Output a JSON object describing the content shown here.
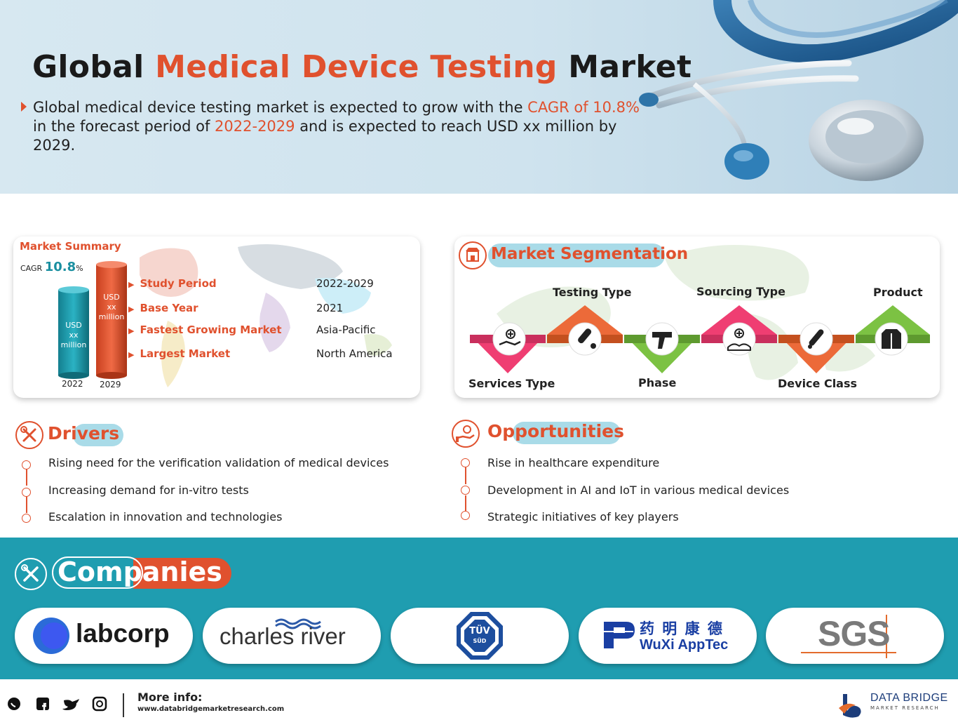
{
  "hero": {
    "title_part1": "Global ",
    "title_part2": "Medical Device Testing",
    "title_part3": " Market",
    "text_1": "Global medical device testing market is expected to grow with the ",
    "text_cagr": "CAGR of 10.8%",
    "text_2": " in the forecast period of ",
    "text_period": "2022-2029",
    "text_3": " and is expected to reach USD xx million by 2029."
  },
  "market_summary": {
    "title": "Market Summary",
    "cagr_prefix": "CAGR",
    "cagr_value": "10.8",
    "cagr_suffix": "%",
    "bar_2022_line1": "USD",
    "bar_2022_line2": "xx",
    "bar_2022_line3": "million",
    "bar_2029_line1": "USD",
    "bar_2029_line2": "xx",
    "bar_2029_line3": "million",
    "year_2022": "2022",
    "year_2029": "2029",
    "rows": [
      {
        "label": "Study Period",
        "value": "2022-2029"
      },
      {
        "label": "Base Year",
        "value": "2021"
      },
      {
        "label": "Fastest Growing Market",
        "value": "Asia-Pacific"
      },
      {
        "label": "Largest Market",
        "value": "North America"
      }
    ]
  },
  "segmentation": {
    "title": "Market Segmentation",
    "segments": [
      "Services Type",
      "Testing Type",
      "Phase",
      "Sourcing Type",
      "Device Class",
      "Product"
    ]
  },
  "drivers": {
    "title": "Drivers",
    "items": [
      "Rising need for the verification validation of medical devices",
      "Increasing demand for in-vitro tests",
      "Escalation in innovation and technologies"
    ]
  },
  "opportunities": {
    "title": "Opportunities",
    "items": [
      "Rise in healthcare expenditure",
      "Development in AI and IoT in various medical devices",
      "Strategic initiatives of key players"
    ]
  },
  "companies": {
    "title": "Companies",
    "logos": {
      "labcorp": "labcorp",
      "charles_river": "charles river",
      "tuv_line1": "TÜV",
      "tuv_line2": "SÜD",
      "wuxi_cn": "药 明 康 德",
      "wuxi_en": "WuXi AppTec",
      "sgs": "SGS"
    }
  },
  "footer": {
    "more_info": "More info:",
    "url": "www.databridgemarketresearch.com",
    "brand_line1": "DATA BRIDGE",
    "brand_line2": "MARKET RESEARCH"
  },
  "colors": {
    "accent": "#e0512e",
    "teal": "#1f9db0",
    "pill": "#a9dbe8"
  }
}
